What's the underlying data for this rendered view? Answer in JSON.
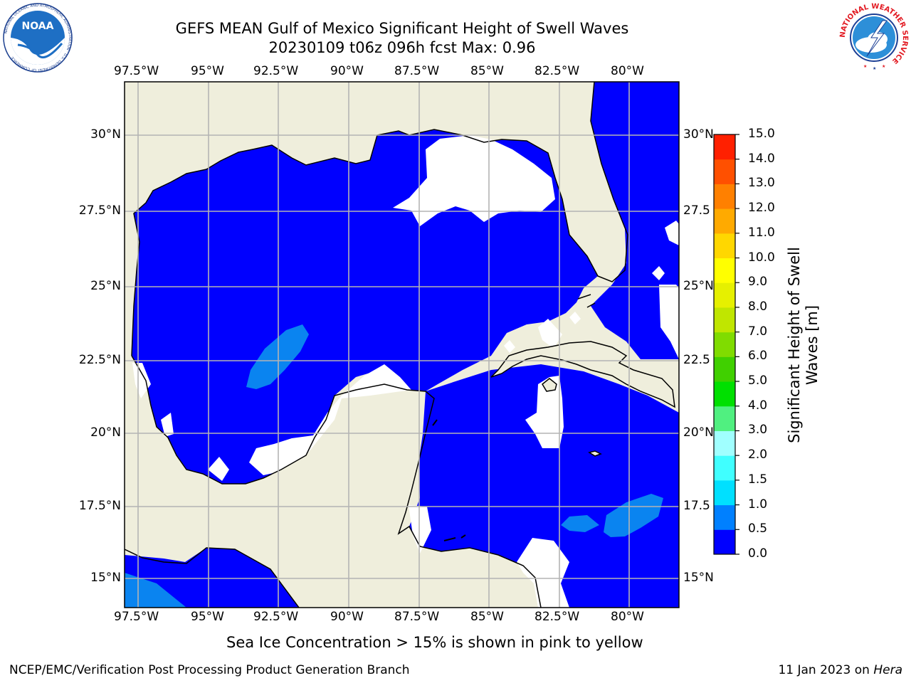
{
  "title_line1": "GEFS MEAN Gulf of Mexico Significant Height of Swell Waves",
  "title_line2": "20230109 t06z 096h fcst   Max: 0.96",
  "lon_labels": [
    "97.5°W",
    "95°W",
    "92.5°W",
    "90°W",
    "87.5°W",
    "85°W",
    "82.5°W",
    "80°W"
  ],
  "lat_labels_left": [
    "30°N",
    "27.5°N",
    "25°N",
    "22.5°N",
    "20°N",
    "17.5°N",
    "15°N"
  ],
  "lat_labels_right": [
    "30°N",
    "27.5",
    "25°N",
    "22.5",
    "20°N",
    "17.5",
    "15°N"
  ],
  "colorbar": {
    "label": "Significant Height of Swell Waves [m]",
    "ticks": [
      "15.0",
      "14.0",
      "13.0",
      "12.0",
      "11.0",
      "10.0",
      "9.0",
      "8.0",
      "7.0",
      "6.0",
      "5.0",
      "4.0",
      "3.0",
      "2.0",
      "1.5",
      "1.0",
      "0.5",
      "0.0"
    ],
    "colors": [
      "#0000ff",
      "#0080ff",
      "#00e0ff",
      "#40ffff",
      "#a0ffff",
      "#50f080",
      "#00e000",
      "#40d000",
      "#80dc00",
      "#c0e600",
      "#e6f000",
      "#ffff00",
      "#ffd700",
      "#ffaa00",
      "#ff8000",
      "#ff5000",
      "#ff2000"
    ]
  },
  "note": "Sea Ice Concentration > 15% is shown in pink to yellow",
  "footer_left": "NCEP/EMC/Verification Post Processing Product Generation Branch",
  "footer_right_date": "11 Jan 2023 on ",
  "footer_right_host": "Hera",
  "logos": {
    "noaa_text": "NOAA",
    "noaa_ring_text": "NATIONAL OCEANIC AND ATMOSPHERIC ADMINISTRATION · U.S. DEPARTMENT OF COMMERCE",
    "nws_ring_text": "NATIONAL WEATHER SERVICE"
  },
  "map_colors": {
    "land": "#efeedc",
    "ocean_low": "#0000ff",
    "ocean_mid": "#0a84f0",
    "nodata": "#ffffff",
    "grid": "#b4b4b4"
  }
}
